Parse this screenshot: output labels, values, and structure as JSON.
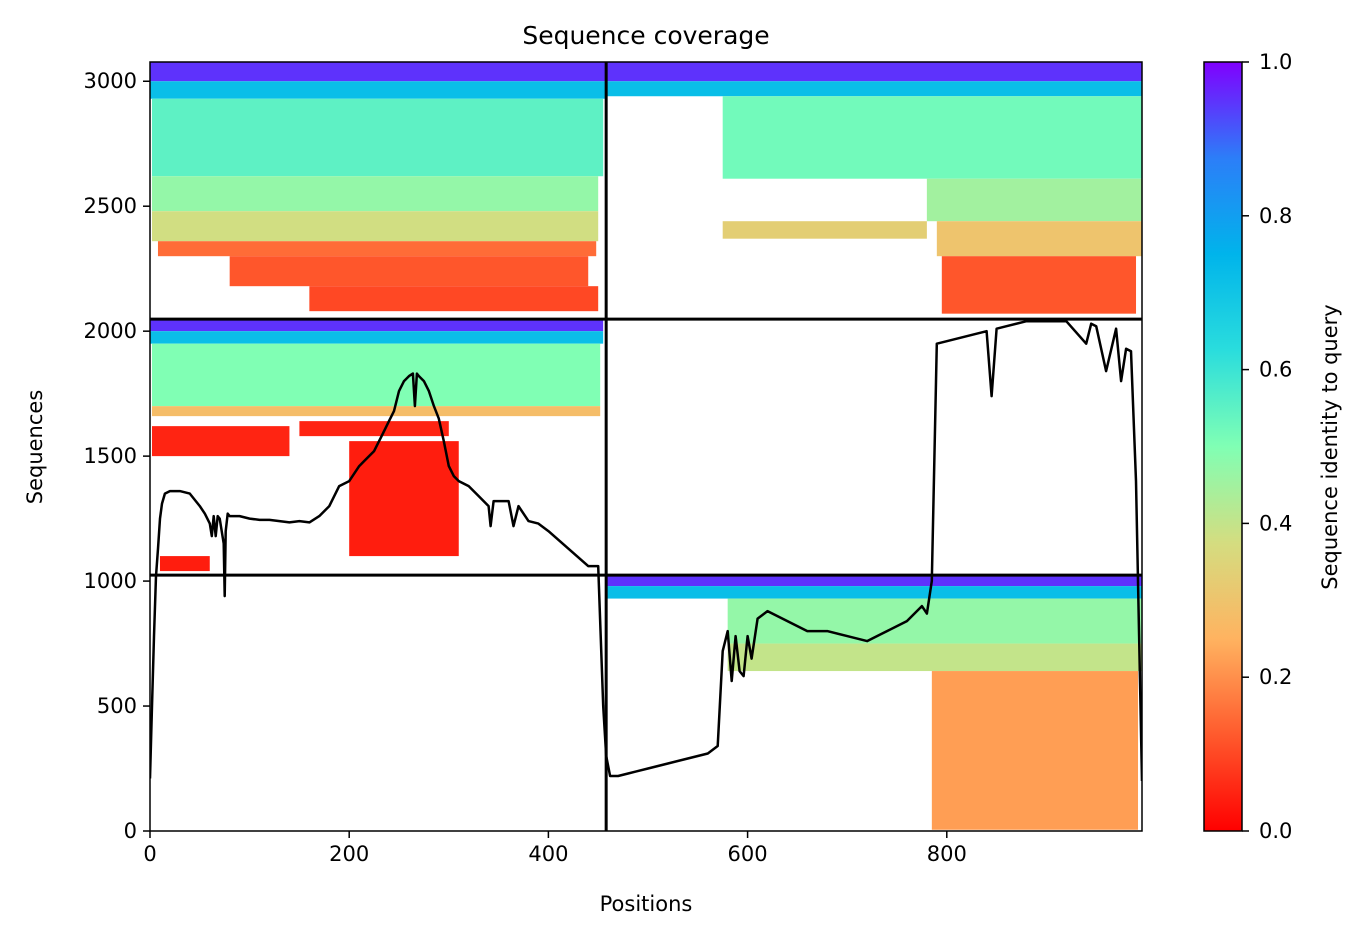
{
  "chart_data": {
    "type": "heatmap",
    "title": "Sequence coverage",
    "xlabel": "Positions",
    "ylabel": "Sequences",
    "xlim": [
      0,
      996
    ],
    "ylim": [
      0,
      3077
    ],
    "x_ticks": [
      0,
      200,
      400,
      600,
      800
    ],
    "y_ticks": [
      0,
      500,
      1000,
      1500,
      2000,
      2500,
      3000
    ],
    "colormap": "rainbow_r",
    "colorbar": {
      "label": "Sequence identity to query",
      "range": [
        0.0,
        1.0
      ],
      "ticks": [
        0.0,
        0.2,
        0.4,
        0.6,
        0.8,
        1.0
      ],
      "tick_labels": [
        "0.0",
        "0.2",
        "0.4",
        "0.6",
        "0.8",
        "1.0"
      ]
    },
    "dividers": {
      "vertical_x": 458,
      "horizontal_y": [
        1024,
        2048
      ]
    },
    "coverage_blocks": [
      {
        "x": [
          0,
          458
        ],
        "y": [
          3000,
          3077
        ],
        "identity": 0.95
      },
      {
        "x": [
          0,
          458
        ],
        "y": [
          2930,
          3000
        ],
        "identity": 0.72
      },
      {
        "x": [
          2,
          455
        ],
        "y": [
          2620,
          2930
        ],
        "identity": 0.55
      },
      {
        "x": [
          2,
          450
        ],
        "y": [
          2480,
          2620
        ],
        "identity": 0.47
      },
      {
        "x": [
          2,
          450
        ],
        "y": [
          2360,
          2480
        ],
        "identity": 0.38
      },
      {
        "x": [
          8,
          448
        ],
        "y": [
          2300,
          2360
        ],
        "identity": 0.15
      },
      {
        "x": [
          80,
          440
        ],
        "y": [
          2180,
          2300
        ],
        "identity": 0.12
      },
      {
        "x": [
          160,
          450
        ],
        "y": [
          2080,
          2180
        ],
        "identity": 0.1
      },
      {
        "x": [
          458,
          996
        ],
        "y": [
          3000,
          3077
        ],
        "identity": 0.95
      },
      {
        "x": [
          458,
          996
        ],
        "y": [
          2940,
          3000
        ],
        "identity": 0.72
      },
      {
        "x": [
          575,
          996
        ],
        "y": [
          2610,
          2940
        ],
        "identity": 0.52
      },
      {
        "x": [
          780,
          996
        ],
        "y": [
          2440,
          2610
        ],
        "identity": 0.45
      },
      {
        "x": [
          575,
          780
        ],
        "y": [
          2370,
          2440
        ],
        "identity": 0.33
      },
      {
        "x": [
          790,
          996
        ],
        "y": [
          2300,
          2440
        ],
        "identity": 0.3
      },
      {
        "x": [
          795,
          990
        ],
        "y": [
          2070,
          2300
        ],
        "identity": 0.12
      },
      {
        "x": [
          0,
          455
        ],
        "y": [
          2000,
          2045
        ],
        "identity": 0.95
      },
      {
        "x": [
          0,
          455
        ],
        "y": [
          1950,
          2000
        ],
        "identity": 0.72
      },
      {
        "x": [
          2,
          452
        ],
        "y": [
          1700,
          1950
        ],
        "identity": 0.5
      },
      {
        "x": [
          2,
          452
        ],
        "y": [
          1660,
          1700
        ],
        "identity": 0.28
      },
      {
        "x": [
          2,
          140
        ],
        "y": [
          1500,
          1620
        ],
        "identity": 0.05
      },
      {
        "x": [
          150,
          300
        ],
        "y": [
          1580,
          1640
        ],
        "identity": 0.05
      },
      {
        "x": [
          200,
          310
        ],
        "y": [
          1100,
          1560
        ],
        "identity": 0.04
      },
      {
        "x": [
          10,
          60
        ],
        "y": [
          1040,
          1100
        ],
        "identity": 0.04
      },
      {
        "x": [
          458,
          996
        ],
        "y": [
          980,
          1020
        ],
        "identity": 0.95
      },
      {
        "x": [
          458,
          996
        ],
        "y": [
          930,
          980
        ],
        "identity": 0.72
      },
      {
        "x": [
          580,
          996
        ],
        "y": [
          750,
          930
        ],
        "identity": 0.47
      },
      {
        "x": [
          580,
          996
        ],
        "y": [
          640,
          750
        ],
        "identity": 0.4
      },
      {
        "x": [
          785,
          992
        ],
        "y": [
          5,
          640
        ],
        "identity": 0.22
      }
    ],
    "coverage_line": {
      "x": [
        0,
        2,
        4,
        6,
        8,
        10,
        12,
        15,
        20,
        30,
        40,
        50,
        55,
        60,
        62,
        64,
        66,
        68,
        70,
        72,
        74,
        75,
        76,
        78,
        80,
        90,
        100,
        110,
        120,
        130,
        140,
        150,
        160,
        170,
        180,
        190,
        200,
        205,
        210,
        215,
        220,
        225,
        230,
        235,
        240,
        245,
        250,
        255,
        260,
        264,
        266,
        268,
        270,
        275,
        280,
        285,
        290,
        295,
        300,
        305,
        310,
        320,
        330,
        340,
        342,
        345,
        350,
        360,
        365,
        370,
        380,
        390,
        400,
        420,
        440,
        445,
        450,
        455,
        458,
        462,
        470,
        480,
        500,
        520,
        540,
        560,
        570,
        575,
        580,
        584,
        588,
        592,
        596,
        600,
        604,
        610,
        620,
        640,
        660,
        680,
        700,
        720,
        740,
        760,
        775,
        780,
        785,
        790,
        800,
        820,
        840,
        845,
        850,
        860,
        880,
        900,
        920,
        940,
        945,
        950,
        960,
        970,
        975,
        980,
        985,
        990,
        994,
        996
      ],
      "y": [
        210,
        500,
        780,
        1020,
        1130,
        1250,
        1310,
        1350,
        1360,
        1360,
        1350,
        1300,
        1270,
        1230,
        1180,
        1260,
        1180,
        1260,
        1250,
        1200,
        1150,
        940,
        1200,
        1270,
        1260,
        1260,
        1250,
        1245,
        1245,
        1240,
        1235,
        1240,
        1235,
        1260,
        1300,
        1380,
        1400,
        1430,
        1460,
        1480,
        1500,
        1520,
        1560,
        1600,
        1640,
        1680,
        1760,
        1800,
        1820,
        1830,
        1700,
        1830,
        1820,
        1800,
        1760,
        1700,
        1650,
        1560,
        1460,
        1420,
        1400,
        1380,
        1340,
        1300,
        1220,
        1320,
        1320,
        1320,
        1220,
        1300,
        1240,
        1230,
        1200,
        1130,
        1060,
        1060,
        1060,
        500,
        300,
        220,
        220,
        230,
        250,
        270,
        290,
        310,
        340,
        720,
        800,
        600,
        780,
        640,
        620,
        780,
        690,
        850,
        880,
        840,
        800,
        800,
        780,
        760,
        800,
        840,
        900,
        870,
        1000,
        1950,
        1960,
        1980,
        2000,
        1740,
        2010,
        2020,
        2040,
        2040,
        2040,
        1950,
        2030,
        2020,
        1840,
        2010,
        1800,
        1930,
        1920,
        1400,
        600,
        200
      ],
      "color": "#000000"
    }
  }
}
